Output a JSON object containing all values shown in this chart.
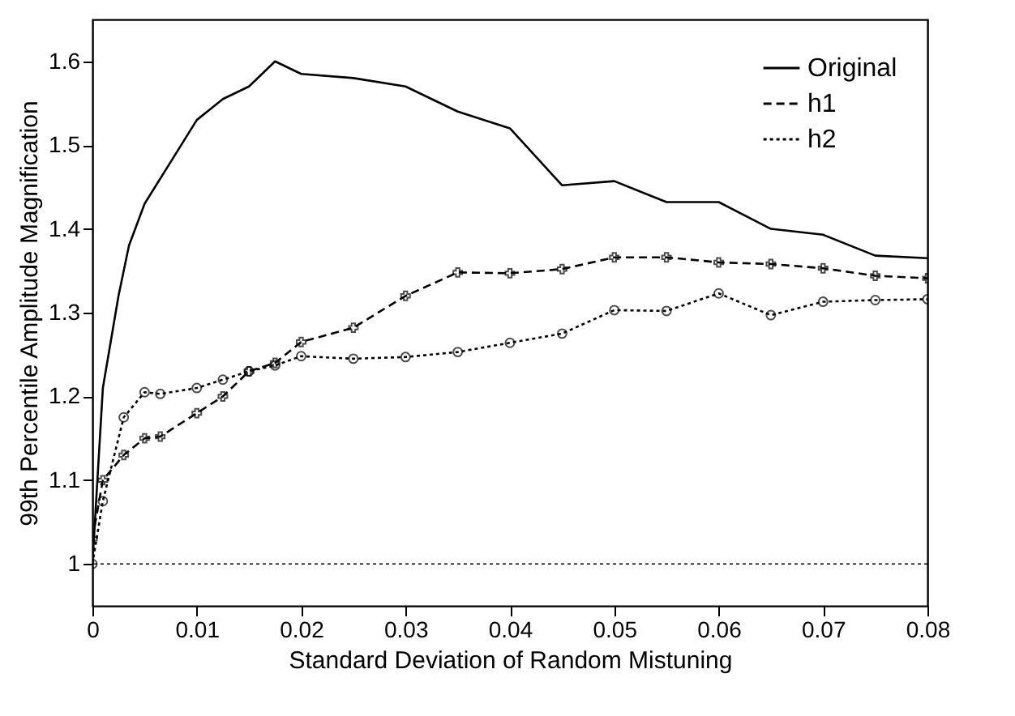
{
  "chart_data": {
    "type": "line",
    "xlabel": "Standard Deviation of Random Mistuning",
    "ylabel": "99th Percentile Amplitude Magnification",
    "xlim": [
      0,
      0.08
    ],
    "xticks": [
      0,
      0.01,
      0.02,
      0.03,
      0.04,
      0.05,
      0.06,
      0.07,
      0.08
    ],
    "ylim": [
      0.95,
      1.65
    ],
    "yticks": [
      1,
      1.1,
      1.2,
      1.3,
      1.4,
      1.5,
      1.6
    ],
    "grid": false,
    "legend": "top right",
    "ref_lines": [
      {
        "axis": "y",
        "value": 1,
        "line_style": "dotted",
        "color": "#000000"
      }
    ],
    "series": [
      {
        "name": "Original",
        "color": "#000000",
        "line_style": "solid",
        "marker": "none",
        "x": [
          0,
          0.001,
          0.0025,
          0.0035,
          0.005,
          0.0075,
          0.01,
          0.0125,
          0.015,
          0.0175,
          0.02,
          0.025,
          0.03,
          0.035,
          0.04,
          0.045,
          0.05,
          0.055,
          0.06,
          0.065,
          0.07,
          0.075,
          0.08
        ],
        "values": [
          1.0,
          1.21,
          1.32,
          1.38,
          1.43,
          1.48,
          1.53,
          1.555,
          1.57,
          1.6,
          1.585,
          1.58,
          1.57,
          1.54,
          1.52,
          1.452,
          1.457,
          1.432,
          1.432,
          1.4,
          1.393,
          1.368,
          1.365
        ]
      },
      {
        "name": "h1",
        "color": "#000000",
        "line_style": "dashed",
        "marker": "cross",
        "x": [
          0,
          0.001,
          0.003,
          0.005,
          0.0065,
          0.01,
          0.0125,
          0.015,
          0.0175,
          0.02,
          0.025,
          0.03,
          0.035,
          0.04,
          0.045,
          0.05,
          0.055,
          0.06,
          0.065,
          0.07,
          0.075,
          0.08
        ],
        "values": [
          1.03,
          1.1,
          1.13,
          1.15,
          1.152,
          1.18,
          1.2,
          1.23,
          1.24,
          1.265,
          1.282,
          1.32,
          1.348,
          1.347,
          1.352,
          1.366,
          1.366,
          1.36,
          1.358,
          1.353,
          1.344,
          1.341
        ]
      },
      {
        "name": "h2",
        "color": "#000000",
        "line_style": "dotted",
        "marker": "circle",
        "x": [
          0,
          0.001,
          0.003,
          0.005,
          0.0065,
          0.01,
          0.0125,
          0.015,
          0.0175,
          0.02,
          0.025,
          0.03,
          0.035,
          0.04,
          0.045,
          0.05,
          0.055,
          0.06,
          0.065,
          0.07,
          0.075,
          0.08
        ],
        "values": [
          1.0,
          1.075,
          1.175,
          1.205,
          1.203,
          1.21,
          1.22,
          1.23,
          1.237,
          1.248,
          1.245,
          1.247,
          1.253,
          1.264,
          1.275,
          1.303,
          1.302,
          1.323,
          1.297,
          1.313,
          1.315,
          1.316
        ]
      }
    ]
  }
}
